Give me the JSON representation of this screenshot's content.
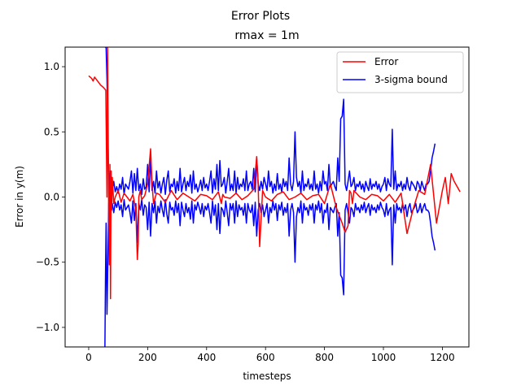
{
  "figure": {
    "suptitle": "Error Plots"
  },
  "chart_data": {
    "type": "line",
    "title": "rmax = 1m",
    "xlabel": "timesteps",
    "ylabel": "Error in y(m)",
    "xlim": [
      -80,
      1290
    ],
    "ylim": [
      -1.15,
      1.15
    ],
    "xticks": [
      0,
      200,
      400,
      600,
      800,
      1000,
      1200
    ],
    "yticks": [
      -1.0,
      -0.5,
      0.0,
      0.5,
      1.0
    ],
    "xtick_labels": [
      "0",
      "200",
      "400",
      "600",
      "800",
      "1000",
      "1200"
    ],
    "ytick_labels": [
      "−1.0",
      "−0.5",
      "0.0",
      "0.5",
      "1.0"
    ],
    "grid": false,
    "legend_position": "top-right",
    "series": [
      {
        "name": "Error",
        "color": "#ff0000",
        "x": [
          0,
          10,
          15,
          20,
          30,
          40,
          50,
          58,
          62,
          64,
          66,
          68,
          70,
          72,
          74,
          76,
          78,
          80,
          85,
          90,
          100,
          110,
          120,
          130,
          140,
          150,
          160,
          165,
          168,
          170,
          175,
          180,
          190,
          200,
          210,
          215,
          220,
          230,
          240,
          260,
          280,
          300,
          320,
          340,
          360,
          380,
          400,
          420,
          440,
          450,
          455,
          460,
          480,
          500,
          520,
          540,
          560,
          570,
          575,
          580,
          590,
          600,
          620,
          640,
          660,
          680,
          700,
          720,
          740,
          760,
          780,
          800,
          820,
          840,
          860,
          870,
          880,
          885,
          890,
          895,
          900,
          920,
          940,
          960,
          980,
          1000,
          1020,
          1040,
          1060,
          1080,
          1100,
          1120,
          1140,
          1160,
          1180,
          1200,
          1210,
          1220,
          1230,
          1240,
          1250,
          1260
        ],
        "y": [
          0.93,
          0.91,
          0.89,
          0.92,
          0.89,
          0.86,
          0.84,
          0.82,
          0.0,
          1.15,
          0.5,
          -0.2,
          -0.52,
          0.25,
          -0.78,
          0.2,
          -0.1,
          0.15,
          -0.05,
          0.0,
          0.05,
          -0.04,
          0.03,
          0.0,
          -0.03,
          0.02,
          -0.1,
          -0.48,
          -0.35,
          0.0,
          0.05,
          -0.02,
          0.01,
          0.1,
          0.37,
          0.1,
          -0.05,
          0.03,
          0.02,
          -0.04,
          0.05,
          -0.02,
          0.03,
          0.0,
          -0.03,
          0.02,
          0.01,
          -0.02,
          0.04,
          -0.05,
          0.02,
          0.0,
          -0.01,
          0.03,
          -0.02,
          0.01,
          0.06,
          0.31,
          0.1,
          -0.38,
          0.05,
          0.0,
          -0.03,
          0.02,
          0.04,
          -0.02,
          0.0,
          0.03,
          -0.02,
          0.01,
          0.02,
          -0.05,
          0.1,
          -0.08,
          -0.2,
          -0.27,
          -0.22,
          0.05,
          0.03,
          -0.05,
          0.05,
          0.0,
          -0.02,
          0.02,
          0.01,
          -0.03,
          0.02,
          -0.04,
          0.03,
          -0.28,
          -0.1,
          0.05,
          0.02,
          0.25,
          -0.2,
          0.05,
          0.15,
          -0.05,
          0.18,
          0.12,
          0.08,
          0.04
        ]
      },
      {
        "name": "3-sigma bound",
        "color": "#0000ff",
        "upper_x": [
          55,
          57,
          59,
          62,
          65,
          68,
          72,
          76,
          80,
          85,
          90,
          95,
          100,
          105,
          110,
          115,
          120,
          125,
          130,
          135,
          140,
          145,
          150,
          155,
          160,
          165,
          170,
          175,
          180,
          185,
          190,
          195,
          200,
          205,
          210,
          215,
          220,
          225,
          230,
          235,
          240,
          245,
          250,
          255,
          260,
          265,
          270,
          275,
          280,
          285,
          290,
          295,
          300,
          305,
          310,
          315,
          320,
          325,
          330,
          335,
          340,
          345,
          350,
          355,
          360,
          365,
          370,
          375,
          380,
          385,
          390,
          395,
          400,
          405,
          410,
          415,
          420,
          425,
          430,
          435,
          440,
          445,
          450,
          455,
          460,
          465,
          470,
          475,
          480,
          485,
          490,
          495,
          500,
          505,
          510,
          515,
          520,
          525,
          530,
          535,
          540,
          545,
          550,
          555,
          560,
          565,
          570,
          575,
          580,
          585,
          590,
          595,
          600,
          605,
          610,
          615,
          620,
          625,
          630,
          635,
          640,
          645,
          650,
          655,
          660,
          665,
          670,
          675,
          680,
          685,
          690,
          695,
          700,
          705,
          710,
          715,
          720,
          725,
          730,
          735,
          740,
          745,
          750,
          755,
          760,
          765,
          770,
          775,
          780,
          785,
          790,
          795,
          800,
          805,
          810,
          815,
          820,
          825,
          830,
          835,
          840,
          845,
          850,
          855,
          860,
          865,
          870,
          875,
          880,
          885,
          890,
          895,
          900,
          905,
          910,
          915,
          920,
          925,
          930,
          935,
          940,
          945,
          950,
          955,
          960,
          965,
          970,
          975,
          980,
          985,
          990,
          995,
          1000,
          1005,
          1010,
          1015,
          1020,
          1025,
          1030,
          1035,
          1040,
          1045,
          1050,
          1055,
          1060,
          1065,
          1070,
          1075,
          1080,
          1085,
          1090,
          1095,
          1100,
          1105,
          1110,
          1115,
          1120,
          1125,
          1130,
          1135,
          1140,
          1145,
          1150,
          1155,
          1160,
          1165,
          1170,
          1175,
          1180,
          1185,
          1190,
          1195,
          1200,
          1205,
          1210,
          1215,
          1220,
          1230,
          1240,
          1250,
          1260
        ],
        "upper_y": [
          1.15,
          1.15,
          1.15,
          0.9,
          0.5,
          0.05,
          0.2,
          0.1,
          0.05,
          0.12,
          0.04,
          0.08,
          0.03,
          0.1,
          0.06,
          0.15,
          0.02,
          0.1,
          0.08,
          0.06,
          0.12,
          0.2,
          0.03,
          0.18,
          0.05,
          0.22,
          0.05,
          0.1,
          0.02,
          0.14,
          0.06,
          0.08,
          0.25,
          0.04,
          0.3,
          0.05,
          0.12,
          0.03,
          0.2,
          0.07,
          0.12,
          0.03,
          0.1,
          0.15,
          0.02,
          0.13,
          0.2,
          0.04,
          0.1,
          0.08,
          0.14,
          0.03,
          0.12,
          0.05,
          0.22,
          0.04,
          0.1,
          0.15,
          0.05,
          0.12,
          0.08,
          0.17,
          0.03,
          0.2,
          0.06,
          0.1,
          0.04,
          0.08,
          0.13,
          0.05,
          0.15,
          0.07,
          0.1,
          0.05,
          0.12,
          0.2,
          0.03,
          0.14,
          0.06,
          0.25,
          0.05,
          0.28,
          0.08,
          0.1,
          0.15,
          0.03,
          0.12,
          0.22,
          0.05,
          0.1,
          0.05,
          0.2,
          0.03,
          0.15,
          0.06,
          0.1,
          0.08,
          0.14,
          0.05,
          0.2,
          0.05,
          0.1,
          0.12,
          0.06,
          0.22,
          0.04,
          0.3,
          0.1,
          0.05,
          0.12,
          0.06,
          0.15,
          0.1,
          0.05,
          0.2,
          0.08,
          0.12,
          0.03,
          0.1,
          0.05,
          0.18,
          0.06,
          0.1,
          0.04,
          0.14,
          0.08,
          0.12,
          0.05,
          0.3,
          0.1,
          0.05,
          0.12,
          0.5,
          0.15,
          0.08,
          0.12,
          0.03,
          0.2,
          0.05,
          0.1,
          0.08,
          0.14,
          0.06,
          0.1,
          0.05,
          0.2,
          0.06,
          0.1,
          0.03,
          0.12,
          0.05,
          0.2,
          0.1,
          0.12,
          0.05,
          0.25,
          0.08,
          0.1,
          0.12,
          0.08,
          0.05,
          0.3,
          0.12,
          0.6,
          0.62,
          0.75,
          0.1,
          0.05,
          0.12,
          0.2,
          0.08,
          0.1,
          0.15,
          0.05,
          0.1,
          0.08,
          0.12,
          0.06,
          0.1,
          0.04,
          0.12,
          0.08,
          0.05,
          0.14,
          0.06,
          0.1,
          0.08,
          0.12,
          0.06,
          0.1,
          0.04,
          0.08,
          0.1,
          0.15,
          0.05,
          0.14,
          0.1,
          0.08,
          0.52,
          0.06,
          0.2,
          0.05,
          0.1,
          0.08,
          0.12,
          0.05,
          0.1,
          0.06,
          0.15,
          0.08,
          0.05,
          0.12,
          0.1,
          0.08,
          0.05,
          0.12,
          0.1,
          0.05,
          0.12,
          0.08,
          0.05,
          0.1,
          0.1,
          0.12,
          0.2,
          0.3,
          0.35,
          0.41
        ],
        "lower_y": [
          -1.15,
          -0.6,
          -0.2,
          -0.9,
          -0.5,
          -0.05,
          -0.2,
          -0.1,
          -0.05,
          -0.12,
          -0.04,
          -0.08,
          -0.03,
          -0.1,
          -0.06,
          -0.15,
          -0.02,
          -0.1,
          -0.08,
          -0.06,
          -0.12,
          -0.2,
          -0.03,
          -0.18,
          -0.05,
          -0.35,
          -0.05,
          -0.1,
          -0.02,
          -0.14,
          -0.06,
          -0.08,
          -0.25,
          -0.04,
          -0.3,
          -0.05,
          -0.12,
          -0.03,
          -0.2,
          -0.07,
          -0.12,
          -0.03,
          -0.1,
          -0.15,
          -0.02,
          -0.13,
          -0.2,
          -0.04,
          -0.1,
          -0.08,
          -0.14,
          -0.03,
          -0.12,
          -0.05,
          -0.22,
          -0.04,
          -0.1,
          -0.15,
          -0.05,
          -0.12,
          -0.08,
          -0.17,
          -0.03,
          -0.2,
          -0.06,
          -0.1,
          -0.04,
          -0.08,
          -0.13,
          -0.05,
          -0.15,
          -0.07,
          -0.1,
          -0.05,
          -0.12,
          -0.2,
          -0.03,
          -0.14,
          -0.06,
          -0.25,
          -0.05,
          -0.28,
          -0.08,
          -0.1,
          -0.15,
          -0.03,
          -0.12,
          -0.22,
          -0.05,
          -0.1,
          -0.05,
          -0.2,
          -0.03,
          -0.15,
          -0.06,
          -0.1,
          -0.08,
          -0.14,
          -0.05,
          -0.2,
          -0.05,
          -0.1,
          -0.12,
          -0.06,
          -0.22,
          -0.04,
          -0.3,
          -0.1,
          -0.05,
          -0.12,
          -0.06,
          -0.15,
          -0.1,
          -0.05,
          -0.2,
          -0.08,
          -0.12,
          -0.03,
          -0.1,
          -0.05,
          -0.18,
          -0.06,
          -0.1,
          -0.04,
          -0.14,
          -0.08,
          -0.12,
          -0.05,
          -0.3,
          -0.1,
          -0.05,
          -0.12,
          -0.5,
          -0.15,
          -0.08,
          -0.12,
          -0.03,
          -0.2,
          -0.05,
          -0.1,
          -0.08,
          -0.14,
          -0.06,
          -0.1,
          -0.05,
          -0.2,
          -0.06,
          -0.1,
          -0.03,
          -0.12,
          -0.05,
          -0.2,
          -0.1,
          -0.12,
          -0.05,
          -0.25,
          -0.08,
          -0.1,
          -0.12,
          -0.08,
          -0.05,
          -0.3,
          -0.12,
          -0.6,
          -0.62,
          -0.75,
          -0.1,
          -0.05,
          -0.12,
          -0.2,
          -0.08,
          -0.1,
          -0.15,
          -0.05,
          -0.1,
          -0.08,
          -0.12,
          -0.06,
          -0.1,
          -0.04,
          -0.12,
          -0.08,
          -0.05,
          -0.14,
          -0.06,
          -0.1,
          -0.08,
          -0.12,
          -0.06,
          -0.1,
          -0.04,
          -0.08,
          -0.1,
          -0.15,
          -0.05,
          -0.14,
          -0.1,
          -0.08,
          -0.52,
          -0.06,
          -0.2,
          -0.05,
          -0.1,
          -0.08,
          -0.12,
          -0.05,
          -0.1,
          -0.06,
          -0.15,
          -0.08,
          -0.05,
          -0.12,
          -0.1,
          -0.08,
          -0.05,
          -0.12,
          -0.1,
          -0.05,
          -0.12,
          -0.08,
          -0.05,
          -0.1,
          -0.1,
          -0.12,
          -0.2,
          -0.3,
          -0.35,
          -0.41
        ]
      }
    ]
  }
}
